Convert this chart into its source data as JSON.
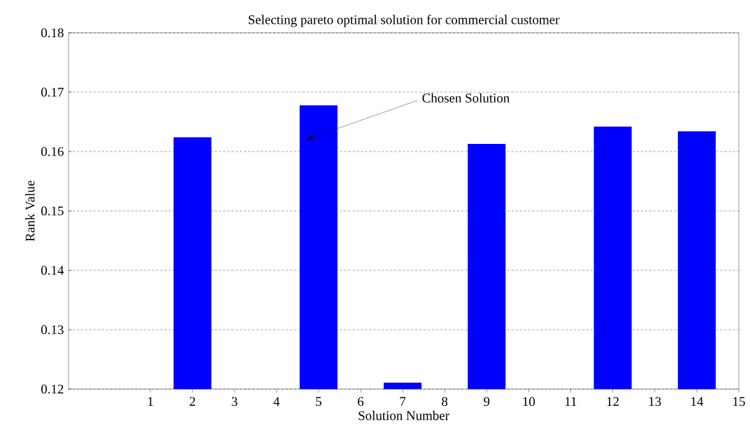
{
  "chart_data": {
    "type": "bar",
    "title": "Selecting pareto optimal solution for commercial customer",
    "xlabel": "Solution Number",
    "ylabel": "Rank Value",
    "categories": [
      "1",
      "2",
      "3",
      "4",
      "5",
      "6",
      "7",
      "8",
      "9",
      "10",
      "11",
      "12",
      "13",
      "14",
      "15"
    ],
    "values": [
      null,
      0.1624,
      null,
      null,
      0.1678,
      null,
      0.1211,
      null,
      0.1613,
      null,
      null,
      0.1642,
      null,
      0.1634,
      null
    ],
    "color": "#0000ff",
    "ylim": [
      0.12,
      0.18
    ],
    "yticks": [
      0.12,
      0.13,
      0.14,
      0.15,
      0.16,
      0.17,
      0.18
    ],
    "grid": "y",
    "annotations": [
      "Chosen Solution"
    ]
  }
}
